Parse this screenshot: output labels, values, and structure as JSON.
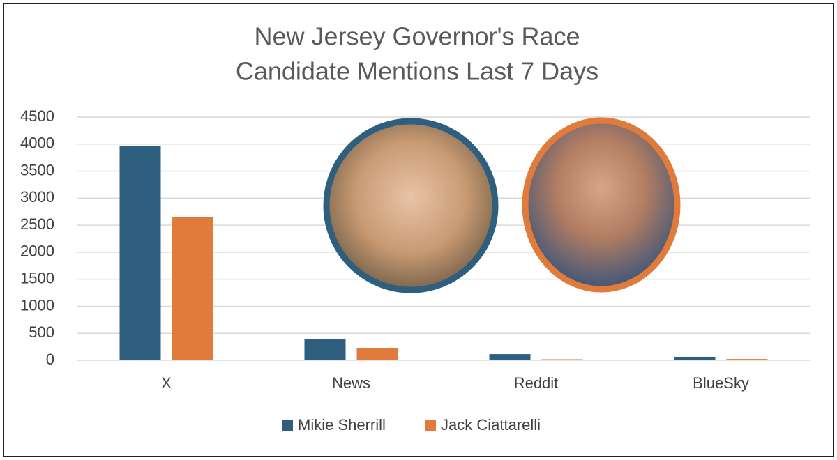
{
  "chart_data": {
    "type": "bar",
    "title": [
      "New Jersey Governor's Race",
      "Candidate Mentions Last 7 Days"
    ],
    "categories": [
      "X",
      "News",
      "Reddit",
      "BlueSky"
    ],
    "series": [
      {
        "name": "Mikie Sherrill",
        "color": "#2e5f7e",
        "values": [
          3970,
          390,
          115,
          65
        ]
      },
      {
        "name": "Jack Ciattarelli",
        "color": "#e07b3c",
        "values": [
          2650,
          230,
          20,
          25
        ]
      }
    ],
    "ylim": [
      0,
      4500
    ],
    "yticks": [
      0,
      500,
      1000,
      1500,
      2000,
      2500,
      3000,
      3500,
      4000,
      4500
    ],
    "grid": true,
    "legend": "bottom"
  }
}
